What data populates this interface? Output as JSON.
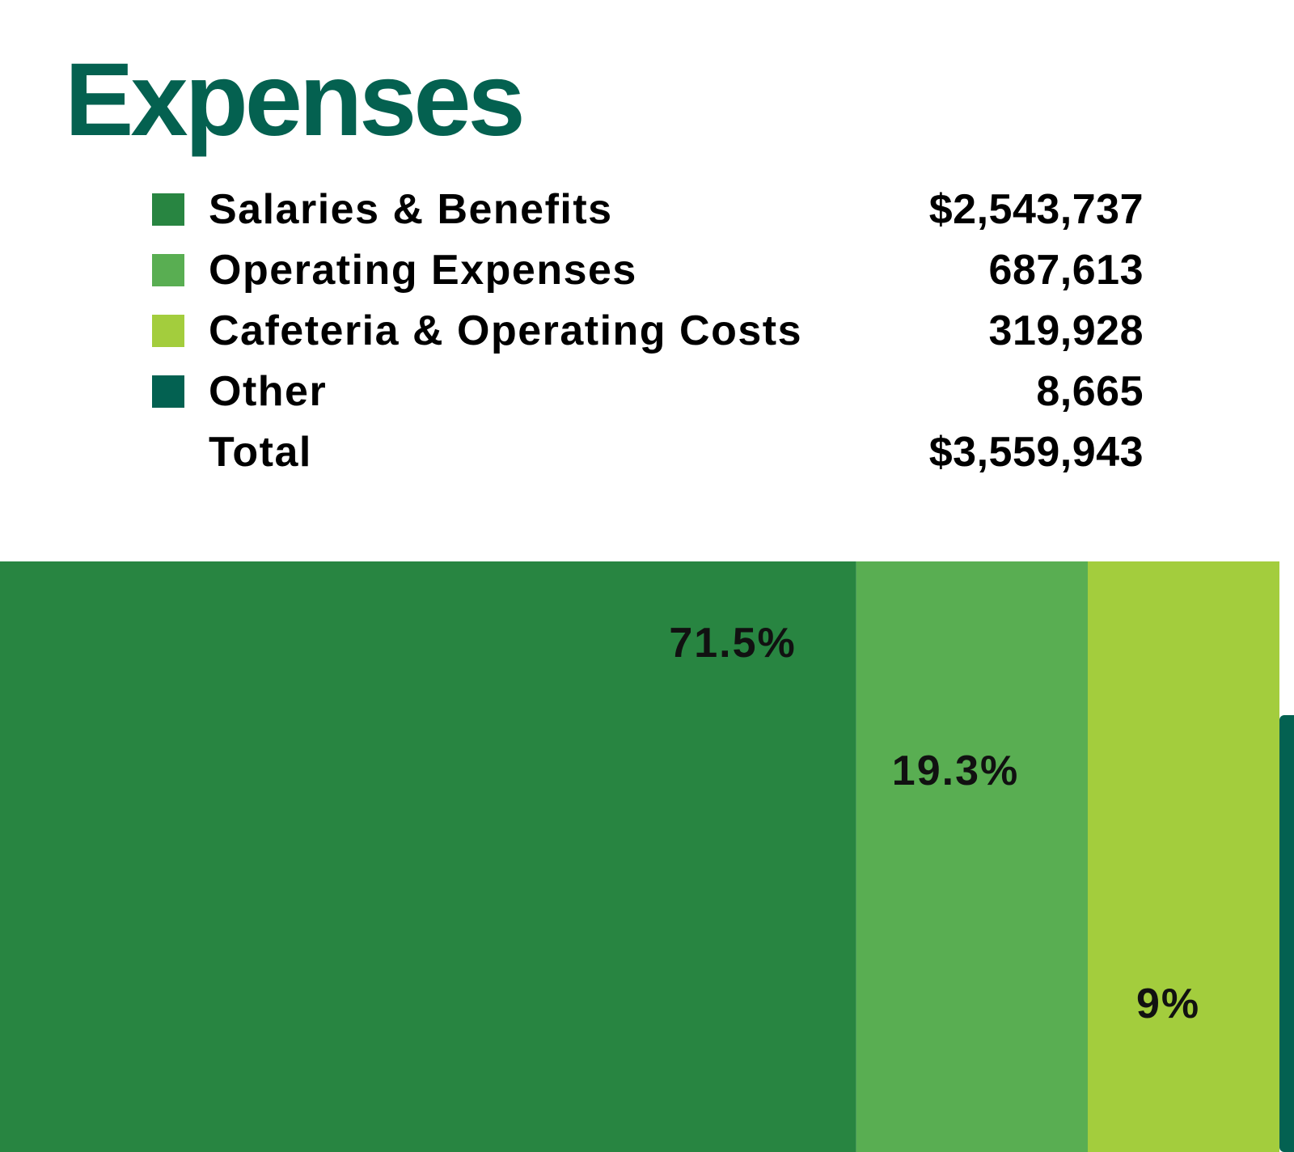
{
  "title": "Expenses",
  "colors": {
    "title": "#046150",
    "salaries": "#288541",
    "operating": "#59ae52",
    "cafeteria": "#a3cd3d",
    "other": "#036151"
  },
  "legend": {
    "items": [
      {
        "label": "Salaries & Benefits",
        "value": "$2,543,737",
        "color_key": "salaries"
      },
      {
        "label": "Operating Expenses",
        "value": "687,613",
        "color_key": "operating"
      },
      {
        "label": "Cafeteria & Operating Costs",
        "value": "319,928",
        "color_key": "cafeteria"
      },
      {
        "label": "Other",
        "value": "8,665",
        "color_key": "other"
      }
    ],
    "total_label": "Total",
    "total_value": "$3,559,943"
  },
  "chart_data": {
    "type": "bar",
    "title": "Expenses",
    "categories": [
      "Salaries & Benefits",
      "Operating Expenses",
      "Cafeteria & Operating Costs",
      "Other"
    ],
    "values": [
      2543737,
      687613,
      319928,
      8665
    ],
    "percent_labels": [
      "71.5%",
      "19.3%",
      "9%",
      ""
    ],
    "colors": [
      "#288541",
      "#59ae52",
      "#a3cd3d",
      "#036151"
    ],
    "total": 3559943
  }
}
